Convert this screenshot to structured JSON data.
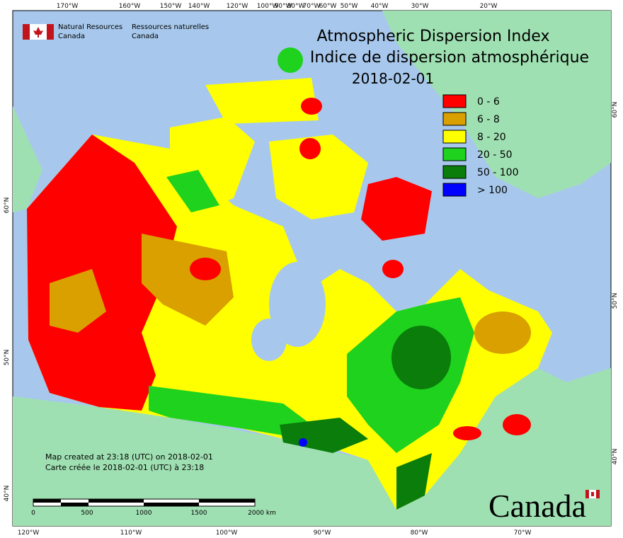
{
  "header": {
    "en": [
      "Natural Resources",
      "Canada"
    ],
    "fr": [
      "Ressources naturelles",
      "Canada"
    ]
  },
  "title": [
    "Atmospheric Dispersion Index",
    "Indice de dispersion atmosphérique",
    "2018-02-01"
  ],
  "legend": [
    {
      "label": "0 - 6",
      "color": "#ff0000"
    },
    {
      "label": "6 - 8",
      "color": "#d9a000"
    },
    {
      "label": "8 - 20",
      "color": "#ffff00"
    },
    {
      "label": "20 - 50",
      "color": "#1ed21e"
    },
    {
      "label": "50 - 100",
      "color": "#0a7d0a"
    },
    {
      "label": "> 100",
      "color": "#0000ff"
    }
  ],
  "footnote": [
    "Map created at 23:18 (UTC) on 2018-02-01",
    "Carte créée le 2018-02-01 (UTC) à 23:18"
  ],
  "scale": [
    "0",
    "500",
    "1000",
    "1500",
    "2000 km"
  ],
  "graticule": {
    "top": [
      "170°W",
      "160°W",
      "150°W",
      "140°W",
      "120°W",
      "100°W",
      "90°W",
      "80°W",
      "70°W",
      "60°W",
      "50°W",
      "40°W",
      "30°W",
      "20°W"
    ],
    "bottom": [
      "120°W",
      "110°W",
      "100°W",
      "90°W",
      "80°W",
      "70°W"
    ],
    "left": [
      "60°N",
      "50°N",
      "40°N"
    ],
    "right": [
      "60°N",
      "50°N",
      "40°N"
    ]
  },
  "wordmark": "Canada"
}
